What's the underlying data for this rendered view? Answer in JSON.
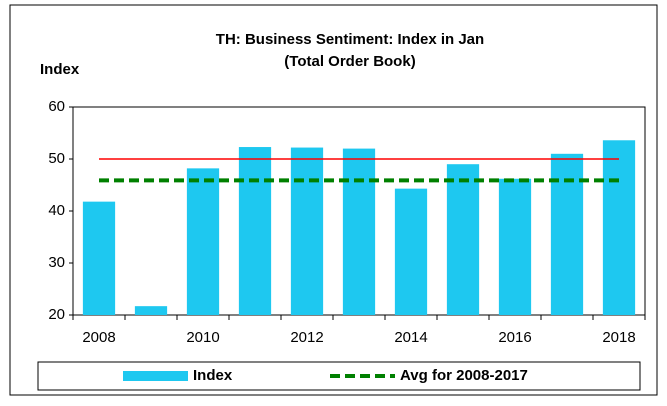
{
  "chart_data": {
    "type": "bar",
    "title": "TH: Business Sentiment: Index in Jan",
    "subtitle": "(Total Order Book)",
    "y_label": "Index",
    "categories": [
      "2008",
      null,
      "2010",
      null,
      "2012",
      null,
      "2014",
      null,
      "2016",
      null,
      "2018"
    ],
    "series": [
      {
        "name": "Index",
        "color": "#1ec8f0",
        "values": [
          41.8,
          21.7,
          48.2,
          52.3,
          52.2,
          52.0,
          44.3,
          49.0,
          46.2,
          51.0,
          53.6
        ]
      }
    ],
    "lines": [
      {
        "name": "Avg for 2008-2017",
        "value": 45.9,
        "color": "#008000",
        "dashed": true
      },
      {
        "value": 50,
        "color": "#ff0000",
        "dashed": false
      }
    ],
    "ylim": [
      20,
      60
    ],
    "yticks": [
      20,
      30,
      40,
      50,
      60
    ],
    "grid": false,
    "legend": "bottom"
  }
}
